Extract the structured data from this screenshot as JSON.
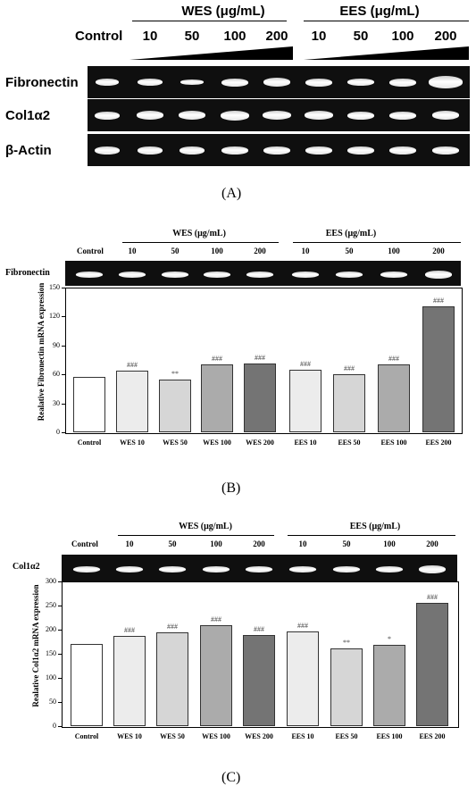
{
  "panel_a": {
    "group_wes": "WES (μg/mL)",
    "group_ees": "EES (μg/mL)",
    "control": "Control",
    "doses": [
      "10",
      "50",
      "100",
      "200",
      "10",
      "50",
      "100",
      "200"
    ],
    "rows": [
      "Fibronectin",
      "Col1α2",
      "β-Actin"
    ],
    "caption": "(A)"
  },
  "panel_b": {
    "group_wes": "WES (μg/mL)",
    "group_ees": "EES (μg/mL)",
    "control": "Control",
    "doses": [
      "10",
      "50",
      "100",
      "200",
      "10",
      "50",
      "100",
      "200"
    ],
    "gel_label": "Fibronectin",
    "caption": "(B)"
  },
  "panel_c": {
    "group_wes": "WES (μg/mL)",
    "group_ees": "EES (μg/mL)",
    "control": "Control",
    "doses": [
      "10",
      "50",
      "100",
      "200",
      "10",
      "50",
      "100",
      "200"
    ],
    "gel_label": "Col1α2",
    "caption": "(C)"
  },
  "chart_data": [
    {
      "type": "bar",
      "ylabel": "Realative Fibronectin mRNA expression",
      "categories": [
        "Control",
        "WES 10",
        "WES 50",
        "WES 100",
        "WES 200",
        "EES 10",
        "EES 50",
        "EES 100",
        "EES 200"
      ],
      "values": [
        57,
        64,
        55,
        70,
        71,
        65,
        60,
        70,
        131
      ],
      "annotations": [
        "",
        "###",
        "**",
        "###",
        "###",
        "###",
        "###",
        "###",
        "###"
      ],
      "colors": [
        "#ffffff",
        "#ececec",
        "#d6d6d6",
        "#ababab",
        "#747474",
        "#ececec",
        "#d6d6d6",
        "#ababab",
        "#747474"
      ],
      "ylim": [
        0,
        150
      ],
      "yticks": [
        "0",
        "30",
        "60",
        "90",
        "120",
        "150"
      ]
    },
    {
      "type": "bar",
      "ylabel": "Realative Col1α2 mRNA expression",
      "categories": [
        "Control",
        "WES 10",
        "WES 50",
        "WES 100",
        "WES 200",
        "EES 10",
        "EES 50",
        "EES 100",
        "EES 200"
      ],
      "values": [
        170,
        187,
        194,
        209,
        188,
        197,
        162,
        168,
        255
      ],
      "annotations": [
        "",
        "###",
        "###",
        "###",
        "###",
        "###",
        "**",
        "*",
        "###"
      ],
      "colors": [
        "#ffffff",
        "#ececec",
        "#d6d6d6",
        "#ababab",
        "#747474",
        "#ececec",
        "#d6d6d6",
        "#ababab",
        "#747474"
      ],
      "ylim": [
        0,
        300
      ],
      "yticks": [
        "0",
        "50",
        "100",
        "150",
        "200",
        "250",
        "300"
      ]
    }
  ]
}
